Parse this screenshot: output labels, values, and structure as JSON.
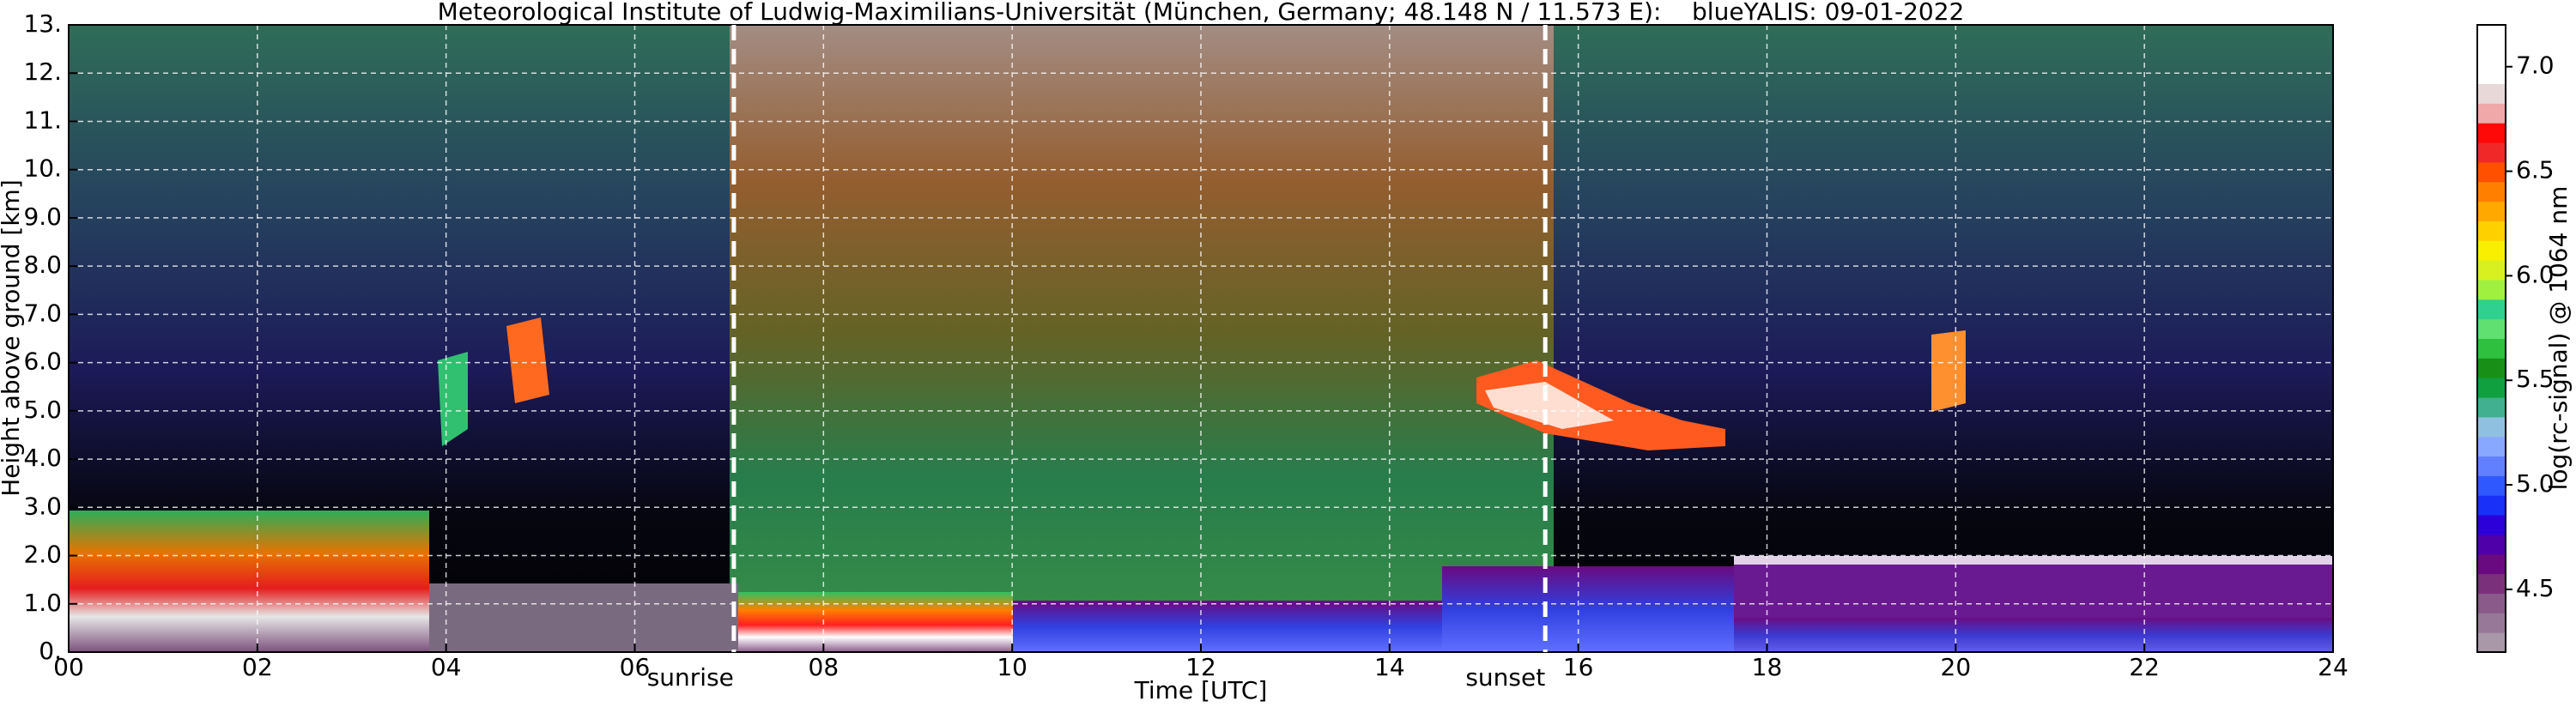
{
  "chart_data": {
    "type": "heatmap",
    "title": "Meteorological Institute of Ludwig-Maximilians-Universität (München, Germany; 48.148 N / 11.573 E):    blueYALIS: 09-01-2022",
    "x_label": "Time [UTC]",
    "y_label": "Height above ground [km]",
    "xlim": [
      0,
      24
    ],
    "xticks": [
      {
        "value": 0,
        "label": "00"
      },
      {
        "value": 2,
        "label": "02"
      },
      {
        "value": 4,
        "label": "04"
      },
      {
        "value": 6,
        "label": "06"
      },
      {
        "value": 8,
        "label": "08"
      },
      {
        "value": 10,
        "label": "10"
      },
      {
        "value": 12,
        "label": "12"
      },
      {
        "value": 14,
        "label": "14"
      },
      {
        "value": 16,
        "label": "16"
      },
      {
        "value": 18,
        "label": "18"
      },
      {
        "value": 20,
        "label": "20"
      },
      {
        "value": 22,
        "label": "22"
      },
      {
        "value": 24,
        "label": "24"
      }
    ],
    "ylim": [
      0,
      13
    ],
    "yticks": [
      {
        "value": 0,
        "label": "0."
      },
      {
        "value": 1,
        "label": "1.0"
      },
      {
        "value": 2,
        "label": "2.0"
      },
      {
        "value": 3,
        "label": "3.0"
      },
      {
        "value": 4,
        "label": "4.0"
      },
      {
        "value": 5,
        "label": "5.0"
      },
      {
        "value": 6,
        "label": "6.0"
      },
      {
        "value": 7,
        "label": "7.0"
      },
      {
        "value": 8,
        "label": "8.0"
      },
      {
        "value": 9,
        "label": "9.0"
      },
      {
        "value": 10,
        "label": "10."
      },
      {
        "value": 11,
        "label": "11."
      },
      {
        "value": 12,
        "label": "12."
      },
      {
        "value": 13,
        "label": "13."
      }
    ],
    "grid": true,
    "annotations": [
      {
        "text": "sunrise",
        "x": 7.05
      },
      {
        "text": "sunset",
        "x": 15.65
      }
    ],
    "colorbar": {
      "label": "log(rc-signal) @ 1064 nm",
      "clim": [
        4.2,
        7.2
      ],
      "ticks": [
        {
          "value": 4.5,
          "label": "4.5"
        },
        {
          "value": 5,
          "label": "5.0"
        },
        {
          "value": 5.5,
          "label": "5.5"
        },
        {
          "value": 6,
          "label": "6.0"
        },
        {
          "value": 6.5,
          "label": "6.5"
        },
        {
          "value": 7,
          "label": "7.0"
        }
      ],
      "colors": [
        "#a898a8",
        "#987898",
        "#8a5a8a",
        "#7a307a",
        "#6a0a80",
        "#5000a8",
        "#2c00d8",
        "#1830f8",
        "#3058ff",
        "#6080ff",
        "#88a8ff",
        "#90c0e0",
        "#40b090",
        "#10a040",
        "#189018",
        "#30c040",
        "#60e070",
        "#30d090",
        "#a0f040",
        "#d8f020",
        "#f8f000",
        "#ffd000",
        "#ffa800",
        "#ff8000",
        "#ff5000",
        "#f02828",
        "#ff0808",
        "#f0a8a8",
        "#e8d8d8",
        "#ffffff",
        "#ffffff",
        "#ffffff"
      ]
    }
  }
}
